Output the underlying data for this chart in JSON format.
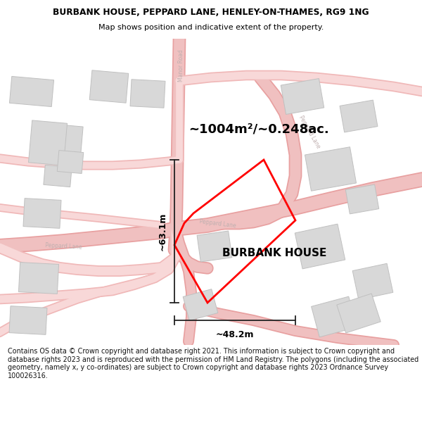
{
  "title_line1": "BURBANK HOUSE, PEPPARD LANE, HENLEY-ON-THAMES, RG9 1NG",
  "title_line2": "Map shows position and indicative extent of the property.",
  "property_label": "BURBANK HOUSE",
  "area_label": "~1004m²/~0.248ac.",
  "width_label": "~48.2m",
  "height_label": "~63.1m",
  "footer": "Contains OS data © Crown copyright and database right 2021. This information is subject to Crown copyright and database rights 2023 and is reproduced with the permission of HM Land Registry. The polygons (including the associated geometry, namely x, y co-ordinates) are subject to Crown copyright and database rights 2023 Ordnance Survey 100026316.",
  "map_bg": "#f5efef",
  "road_fill": "#f0c0c0",
  "road_edge": "#e8a0a0",
  "road_fill_light": "#f8d8d8",
  "road_edge_light": "#f0b8b8",
  "building_fill": "#d8d8d8",
  "building_edge": "#c0c0c0",
  "property_color": "#ff0000",
  "dim_color": "#222222",
  "street_color": "#c0b0b0",
  "title_color": "#000000",
  "footer_color": "#111111"
}
